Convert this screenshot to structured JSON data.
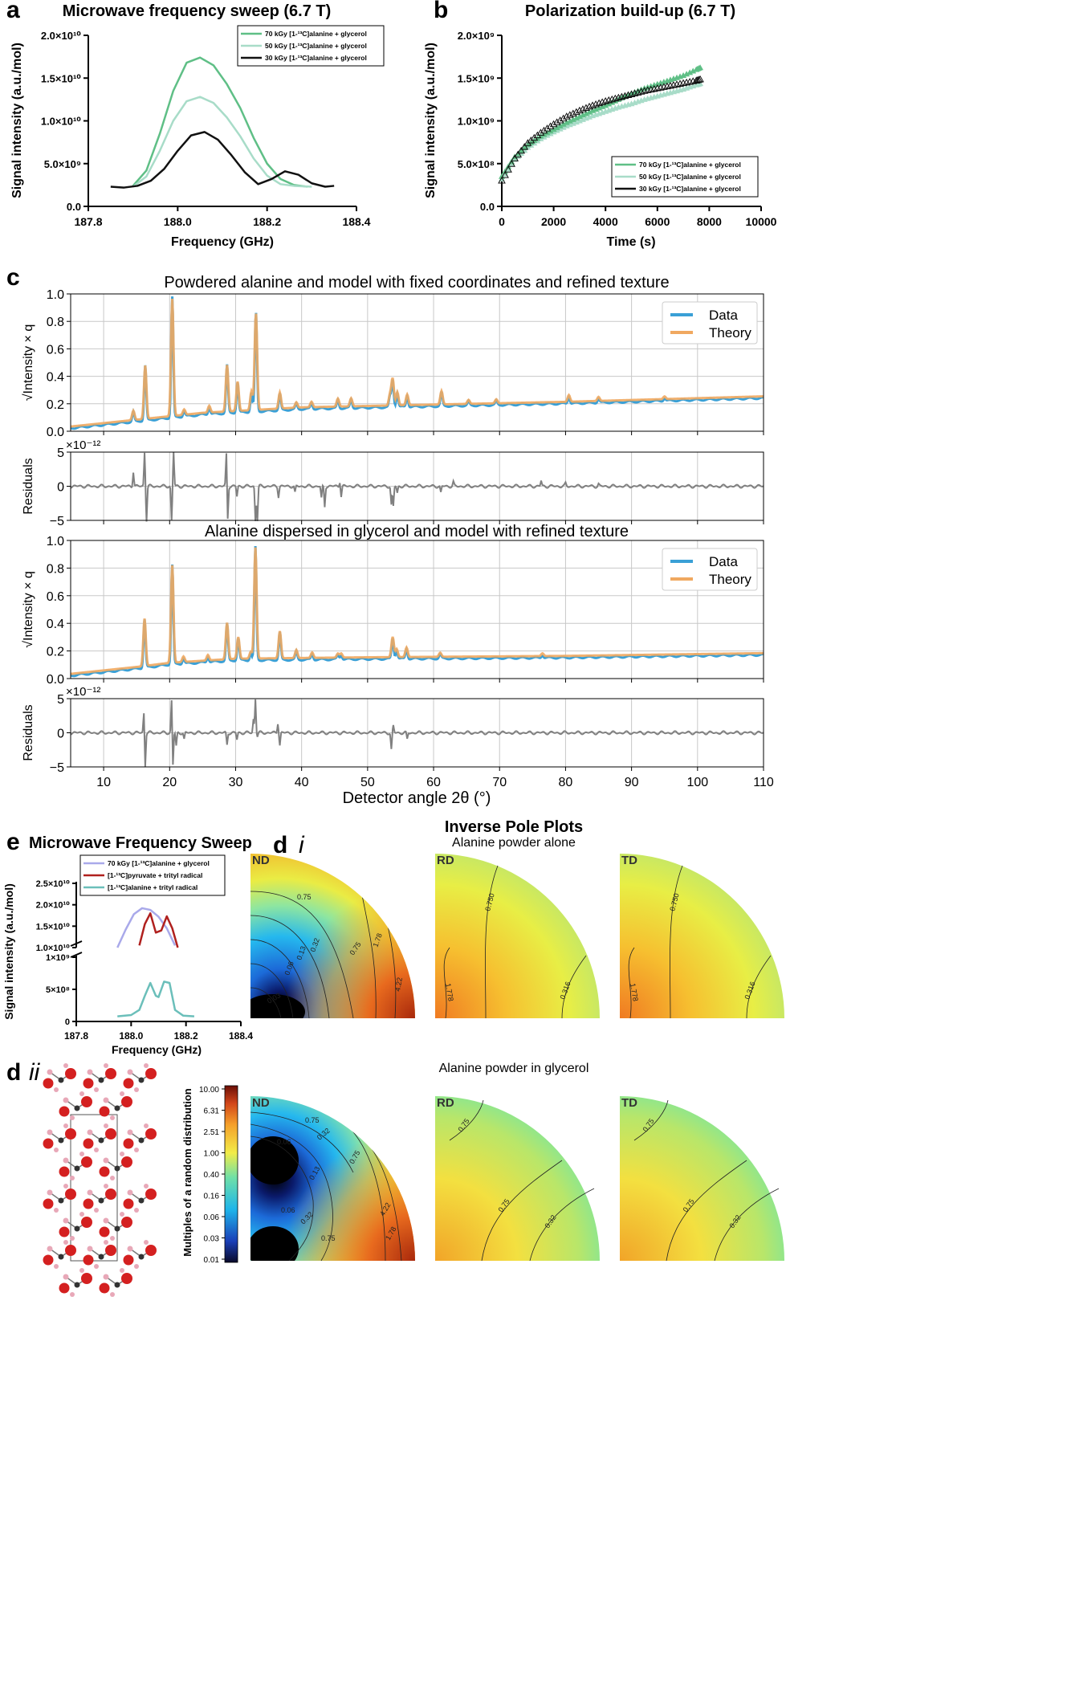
{
  "colors": {
    "g70": "#5fbf86",
    "g50": "#a8dcc8",
    "k30": "#111111",
    "data": "#3aa0d6",
    "theory": "#f0a860",
    "resid": "#808080",
    "e70": "#a9a9ea",
    "epyr": "#b0201e",
    "eala": "#6bbfba"
  },
  "panel_letters": {
    "a": "a",
    "b": "b",
    "c": "c",
    "e": "e",
    "di": "d",
    "di_sub": "i",
    "dii": "d",
    "dii_sub": "ii"
  },
  "legend_labels": [
    "70 kGy [1-¹³C]alanine + glycerol",
    "50 kGy [1-¹³C]alanine + glycerol",
    "30 kGy [1-¹³C]alanine + glycerol"
  ],
  "chart_data": [
    {
      "id": "a",
      "type": "line",
      "title": "Microwave frequency sweep (6.7 T)",
      "xlabel": "Frequency (GHz)",
      "ylabel": "Signal intensity (a.u./mol)",
      "xlim": [
        187.8,
        188.4
      ],
      "ylim": [
        0,
        20000000000.0
      ],
      "xticks": [
        "187.8",
        "188.0",
        "188.2",
        "188.4"
      ],
      "yticks": [
        "0.0",
        "5.0×10⁹",
        "1.0×10¹⁰",
        "1.5×10¹⁰",
        "2.0×10¹⁰"
      ],
      "series": [
        {
          "name": "70 kGy [1-¹³C]alanine + glycerol",
          "x": [
            187.9,
            187.93,
            187.96,
            187.99,
            188.02,
            188.05,
            188.08,
            188.11,
            188.14,
            188.17,
            188.2,
            188.23,
            188.26,
            188.29
          ],
          "y": [
            2400000000.0,
            4200000000.0,
            8500000000.0,
            13500000000.0,
            16800000000.0,
            17400000000.0,
            16500000000.0,
            14300000000.0,
            11500000000.0,
            8000000000.0,
            5000000000.0,
            3200000000.0,
            2500000000.0,
            2300000000.0
          ]
        },
        {
          "name": "50 kGy [1-¹³C]alanine + glycerol",
          "x": [
            187.9,
            187.93,
            187.96,
            187.99,
            188.02,
            188.05,
            188.08,
            188.11,
            188.14,
            188.17,
            188.2,
            188.23,
            188.26,
            188.3
          ],
          "y": [
            2300000000.0,
            3500000000.0,
            6500000000.0,
            10000000000.0,
            12300000000.0,
            12800000000.0,
            12100000000.0,
            10400000000.0,
            8200000000.0,
            5600000000.0,
            3600000000.0,
            2600000000.0,
            2400000000.0,
            2300000000.0
          ]
        },
        {
          "name": "30 kGy [1-¹³C]alanine + glycerol",
          "x": [
            187.85,
            187.88,
            187.91,
            187.94,
            187.97,
            188.0,
            188.03,
            188.06,
            188.09,
            188.12,
            188.15,
            188.18,
            188.21,
            188.24,
            188.27,
            188.3,
            188.33,
            188.35
          ],
          "y": [
            2300000000.0,
            2200000000.0,
            2400000000.0,
            3000000000.0,
            4400000000.0,
            6500000000.0,
            8300000000.0,
            8700000000.0,
            7800000000.0,
            6000000000.0,
            4000000000.0,
            2600000000.0,
            3200000000.0,
            4100000000.0,
            3700000000.0,
            2700000000.0,
            2300000000.0,
            2400000000.0
          ]
        }
      ]
    },
    {
      "id": "b",
      "type": "scatter",
      "title": "Polarization build-up (6.7 T)",
      "xlabel": "Time (s)",
      "ylabel": "Signal intensity (a.u./mol)",
      "xlim": [
        0,
        10000
      ],
      "ylim": [
        0,
        2000000000.0
      ],
      "xticks": [
        "0",
        "2000",
        "4000",
        "6000",
        "8000",
        "10000"
      ],
      "yticks": [
        "0.0",
        "5.0×10⁸",
        "1.0×10⁹",
        "1.5×10⁹",
        "2.0×10⁹"
      ],
      "series": [
        {
          "name": "70 kGy [1-¹³C]alanine + glycerol",
          "x": [
            0,
            500,
            1000,
            1500,
            2000,
            2500,
            3000,
            3500,
            4000,
            4500,
            5000,
            5500,
            6000,
            6500,
            7000,
            7500,
            7700
          ],
          "y": [
            350000000.0,
            580000000.0,
            720000000.0,
            820000000.0,
            900000000.0,
            980000000.0,
            1050000000.0,
            1120000000.0,
            1180000000.0,
            1250000000.0,
            1320000000.0,
            1380000000.0,
            1430000000.0,
            1480000000.0,
            1530000000.0,
            1600000000.0,
            1630000000.0
          ]
        },
        {
          "name": "50 kGy [1-¹³C]alanine + glycerol",
          "x": [
            0,
            500,
            1000,
            1500,
            2000,
            2500,
            3000,
            3500,
            4000,
            4500,
            5000,
            5500,
            6000,
            6500,
            7000,
            7500,
            7700
          ],
          "y": [
            320000000.0,
            550000000.0,
            690000000.0,
            790000000.0,
            870000000.0,
            940000000.0,
            1000000000.0,
            1060000000.0,
            1110000000.0,
            1160000000.0,
            1200000000.0,
            1250000000.0,
            1290000000.0,
            1330000000.0,
            1370000000.0,
            1420000000.0,
            1440000000.0
          ]
        },
        {
          "name": "30 kGy [1-¹³C]alanine + glycerol",
          "x": [
            0,
            500,
            1000,
            1500,
            2000,
            2500,
            3000,
            3500,
            4000,
            4500,
            5000,
            5500,
            6000,
            6500,
            7000,
            7500,
            7700
          ],
          "y": [
            300000000.0,
            560000000.0,
            740000000.0,
            860000000.0,
            960000000.0,
            1050000000.0,
            1120000000.0,
            1180000000.0,
            1230000000.0,
            1270000000.0,
            1310000000.0,
            1350000000.0,
            1380000000.0,
            1410000000.0,
            1440000000.0,
            1470000000.0,
            1490000000.0
          ]
        }
      ]
    },
    {
      "id": "c1",
      "type": "line",
      "title": "Powdered alanine and model with fixed coordinates and refined texture",
      "ylabel": "√Intensity × q",
      "xlim": [
        5,
        110
      ],
      "ylim": [
        0,
        1.0
      ],
      "yticks": [
        "0.0",
        "0.2",
        "0.4",
        "0.6",
        "0.8",
        "1.0"
      ],
      "legend": [
        "Data",
        "Theory"
      ],
      "baseline": [
        [
          5,
          0.03
        ],
        [
          15,
          0.08
        ],
        [
          25,
          0.13
        ],
        [
          40,
          0.17
        ],
        [
          60,
          0.19
        ],
        [
          80,
          0.21
        ],
        [
          110,
          0.25
        ]
      ],
      "peaks": [
        [
          14.5,
          0.07
        ],
        [
          16.3,
          0.4
        ],
        [
          20.4,
          0.88
        ],
        [
          22.2,
          0.04
        ],
        [
          26,
          0.05
        ],
        [
          28.7,
          0.35
        ],
        [
          30.3,
          0.22
        ],
        [
          32.4,
          0.14
        ],
        [
          33.0,
          0.2
        ],
        [
          33.1,
          0.55
        ],
        [
          36.7,
          0.12
        ],
        [
          39.2,
          0.04
        ],
        [
          41.5,
          0.04
        ],
        [
          45.5,
          0.06
        ],
        [
          47.5,
          0.06
        ],
        [
          53.4,
          0.08
        ],
        [
          53.8,
          0.2
        ],
        [
          54.5,
          0.1
        ],
        [
          56.0,
          0.08
        ],
        [
          61.2,
          0.1
        ],
        [
          65.3,
          0.03
        ],
        [
          69.5,
          0.03
        ],
        [
          80.5,
          0.05
        ],
        [
          85.0,
          0.03
        ],
        [
          95.0,
          0.02
        ]
      ],
      "theory_scale": 0.97
    },
    {
      "id": "r1",
      "type": "line",
      "ylabel": "Residuals",
      "scale_note": "×10⁻¹²",
      "xlim": [
        5,
        110
      ],
      "ylim": [
        -5,
        5
      ],
      "yticks": [
        "−5",
        "0",
        "5"
      ],
      "spikes": [
        [
          14.5,
          2.2
        ],
        [
          16.2,
          5.0
        ],
        [
          16.5,
          -5.0
        ],
        [
          20.3,
          -5.0
        ],
        [
          20.6,
          5.0
        ],
        [
          28.6,
          5.0
        ],
        [
          28.8,
          -5.0
        ],
        [
          30.2,
          -1.5
        ],
        [
          33.0,
          -5.0
        ],
        [
          33.3,
          -5.0
        ],
        [
          36.5,
          -1.5
        ],
        [
          39.0,
          -1.0
        ],
        [
          43.0,
          -1.8
        ],
        [
          43.5,
          -3.0
        ],
        [
          45.8,
          0.8
        ],
        [
          46.0,
          -1.5
        ],
        [
          53.6,
          -2.8
        ],
        [
          53.9,
          -3.0
        ],
        [
          54.5,
          -1.0
        ],
        [
          61.1,
          -1.0
        ],
        [
          63.0,
          0.6
        ],
        [
          76.3,
          0.8
        ],
        [
          80.0,
          0.4
        ],
        [
          85.0,
          0.3
        ]
      ]
    },
    {
      "id": "c2",
      "type": "line",
      "title": "Alanine dispersed in glycerol and model with refined texture",
      "ylabel": "√Intensity × q",
      "xlim": [
        5,
        110
      ],
      "ylim": [
        0,
        1.0
      ],
      "yticks": [
        "0.0",
        "0.2",
        "0.4",
        "0.6",
        "0.8",
        "1.0"
      ],
      "legend": [
        "Data",
        "Theory"
      ],
      "baseline": [
        [
          5,
          0.03
        ],
        [
          15,
          0.08
        ],
        [
          20,
          0.11
        ],
        [
          30,
          0.14
        ],
        [
          50,
          0.15
        ],
        [
          80,
          0.16
        ],
        [
          110,
          0.18
        ]
      ],
      "peaks": [
        [
          16.2,
          0.35
        ],
        [
          20.4,
          0.72
        ],
        [
          22.1,
          0.04
        ],
        [
          25.8,
          0.04
        ],
        [
          28.7,
          0.27
        ],
        [
          30.4,
          0.16
        ],
        [
          32.3,
          0.05
        ],
        [
          33.0,
          0.82
        ],
        [
          36.7,
          0.2
        ],
        [
          39.2,
          0.06
        ],
        [
          41.6,
          0.04
        ],
        [
          45.5,
          0.03
        ],
        [
          46.0,
          0.03
        ],
        [
          53.8,
          0.15
        ],
        [
          54.4,
          0.06
        ],
        [
          55.9,
          0.07
        ],
        [
          61.0,
          0.03
        ],
        [
          76.5,
          0.02
        ]
      ],
      "theory_scale": 0.98
    },
    {
      "id": "r2",
      "type": "line",
      "ylabel": "Residuals",
      "scale_note": "×10⁻¹²",
      "xlabel": "Detector angle 2θ (°)",
      "xlim": [
        5,
        110
      ],
      "ylim": [
        -5,
        5
      ],
      "yticks": [
        "−5",
        "0",
        "5"
      ],
      "xticks": [
        "10",
        "20",
        "30",
        "40",
        "50",
        "60",
        "70",
        "80",
        "90",
        "100",
        "110"
      ],
      "spikes": [
        [
          16.1,
          3.2
        ],
        [
          16.3,
          -5.0
        ],
        [
          20.3,
          5.0
        ],
        [
          20.5,
          -5.0
        ],
        [
          21.0,
          -2.0
        ],
        [
          22.2,
          -1.0
        ],
        [
          28.7,
          -1.8
        ],
        [
          30.2,
          -1.0
        ],
        [
          32.7,
          2.0
        ],
        [
          33.0,
          5.0
        ],
        [
          33.3,
          -0.5
        ],
        [
          36.4,
          1.5
        ],
        [
          36.7,
          -1.8
        ],
        [
          53.6,
          -2.5
        ],
        [
          53.9,
          1.0
        ],
        [
          56.0,
          -1.0
        ]
      ]
    },
    {
      "id": "e",
      "type": "line",
      "title": "Microwave Frequency Sweep",
      "xlabel": "Frequency (GHz)",
      "ylabel": "Signal intensity (a.u./mol)",
      "xlim": [
        187.8,
        188.4
      ],
      "xticks": [
        "187.8",
        "188.0",
        "188.2",
        "188.4"
      ],
      "yticks_top": [
        "1.0×10¹⁰",
        "1.5×10¹⁰",
        "2.0×10¹⁰",
        "2.5×10¹⁰"
      ],
      "yticks_bottom": [
        "0",
        "5×10⁸",
        "1×10⁹"
      ],
      "series": [
        {
          "name": "70 kGy [1-¹³C]alanine + glycerol",
          "x": [
            187.95,
            187.98,
            188.01,
            188.04,
            188.07,
            188.1,
            188.13,
            188.16
          ],
          "y": [
            10000000000.0,
            14200000000.0,
            17800000000.0,
            19200000000.0,
            18800000000.0,
            17200000000.0,
            14500000000.0,
            10500000000.0
          ]
        },
        {
          "name": "[1-¹³C]pyruvate + trityl radical",
          "x": [
            188.03,
            188.05,
            188.07,
            188.09,
            188.11,
            188.13,
            188.15,
            188.17
          ],
          "y": [
            10500000000.0,
            15500000000.0,
            18000000000.0,
            13500000000.0,
            14000000000.0,
            17300000000.0,
            14500000000.0,
            10000000000.0
          ]
        },
        {
          "name": "[1-¹³C]alanine + trityl radical",
          "x": [
            187.95,
            188.0,
            188.03,
            188.05,
            188.07,
            188.09,
            188.1,
            188.12,
            188.14,
            188.16,
            188.19,
            188.23
          ],
          "y": [
            80000000.0,
            100000000.0,
            180000000.0,
            400000000.0,
            600000000.0,
            400000000.0,
            380000000.0,
            620000000.0,
            600000000.0,
            180000000.0,
            90000000.0,
            80000000.0
          ]
        }
      ]
    }
  ],
  "pole_plots": {
    "title": "Inverse Pole Plots",
    "row1_subtitle": "Alanine powder alone",
    "row2_subtitle": "Alanine powder in glycerol",
    "directions": [
      "ND",
      "RD",
      "TD"
    ],
    "row1_contours": {
      "ND": [
        "0.75",
        "0.32",
        "0.06",
        "0.13",
        "0.75",
        "1.78",
        "4.22",
        "0.03"
      ],
      "RD": [
        "1.778",
        "0.750"
      ],
      "TD": [
        "1.778",
        "0.750",
        "0.316"
      ]
    },
    "row1_rd_extra": "0.316",
    "row2_contours": {
      "ND": [
        "0.75",
        "0.32",
        "0.06",
        "0.13",
        "0.32",
        "0.75",
        "4.22",
        "1.78",
        "0.75",
        "0.06"
      ],
      "RD": [
        "0.75",
        "0.75",
        "0.32"
      ],
      "TD": [
        "0.75",
        "0.75",
        "0.32"
      ]
    }
  },
  "colorbar": {
    "label": "Multiples of a random distribution",
    "ticks": [
      "10.00",
      "6.31",
      "2.51",
      "1.00",
      "0.40",
      "0.16",
      "0.06",
      "0.03",
      "0.01"
    ]
  }
}
